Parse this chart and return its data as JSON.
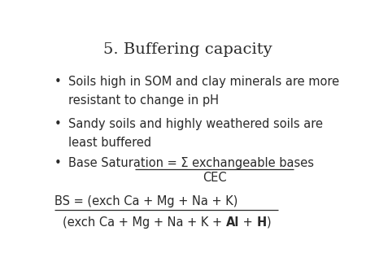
{
  "title": "5. Buffering capacity",
  "title_fontsize": 14,
  "background_color": "#ffffff",
  "text_color": "#2a2a2a",
  "bullet1_line1": "Soils high in SOM and clay minerals are more",
  "bullet1_line2": "resistant to change in pH",
  "bullet2_line1": "Sandy soils and highly weathered soils are",
  "bullet2_line2": "least buffered",
  "bullet3_pre": "Base Saturation = Σ exchangeable bases",
  "bullet3_denom": "CEC",
  "bs_numerator": "BS = (exch Ca + Mg + Na + K)",
  "denom_pre": "(exch Ca + Mg + Na + K + ",
  "denom_bold1": "Al",
  "denom_mid": " + ",
  "denom_bold2": "H",
  "denom_post": ")",
  "body_fontsize": 10.5,
  "figwidth": 4.5,
  "figheight": 3.38,
  "dpi": 100
}
